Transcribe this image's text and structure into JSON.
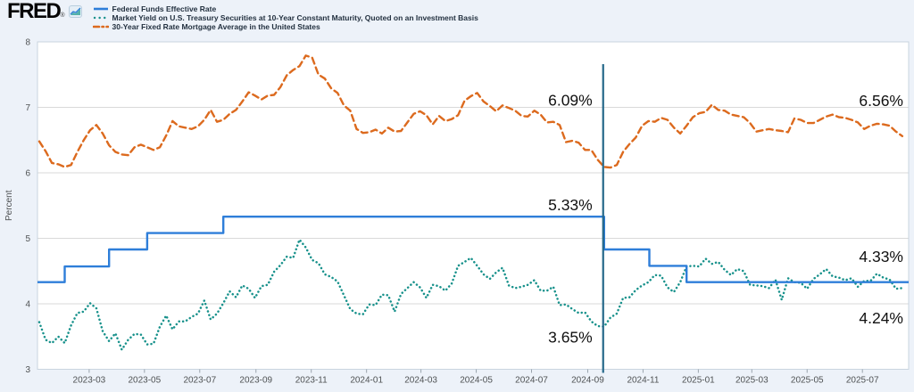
{
  "header": {
    "logo": "FRED",
    "logo_mark": "®",
    "legend": [
      {
        "label": "Federal Funds Effective Rate",
        "color": "#2e7ed9",
        "style": "solid"
      },
      {
        "label": "Market Yield on U.S. Treasury Securities at 10-Year Constant Maturity, Quoted on an Investment Basis",
        "color": "#17918b",
        "style": "dotted"
      },
      {
        "label": "30-Year Fixed Rate Mortgage Average in the United States",
        "color": "#dc6a1e",
        "style": "dashed"
      }
    ]
  },
  "chart_data": {
    "type": "line",
    "title": "",
    "ylabel": "Percent",
    "xlabel": "",
    "grid": "horizontal",
    "legend_position": "top-left",
    "ylim": [
      3,
      8
    ],
    "yticks": [
      3,
      4,
      5,
      6,
      7,
      8
    ],
    "x_domain": [
      "2023-01-03",
      "2025-08-21"
    ],
    "xticks": [
      "2023-03",
      "2023-05",
      "2023-07",
      "2023-09",
      "2023-11",
      "2024-01",
      "2024-03",
      "2024-05",
      "2024-07",
      "2024-09",
      "2024-11",
      "2025-01",
      "2025-03",
      "2025-05",
      "2025-07"
    ],
    "dates": [
      "2023-01-05",
      "2023-01-12",
      "2023-01-19",
      "2023-01-26",
      "2023-02-02",
      "2023-02-09",
      "2023-02-16",
      "2023-02-23",
      "2023-03-02",
      "2023-03-09",
      "2023-03-16",
      "2023-03-23",
      "2023-03-30",
      "2023-04-06",
      "2023-04-13",
      "2023-04-20",
      "2023-04-27",
      "2023-05-04",
      "2023-05-11",
      "2023-05-18",
      "2023-05-25",
      "2023-06-01",
      "2023-06-08",
      "2023-06-15",
      "2023-06-22",
      "2023-06-29",
      "2023-07-06",
      "2023-07-13",
      "2023-07-20",
      "2023-07-27",
      "2023-08-03",
      "2023-08-10",
      "2023-08-17",
      "2023-08-24",
      "2023-08-31",
      "2023-09-07",
      "2023-09-14",
      "2023-09-21",
      "2023-09-28",
      "2023-10-05",
      "2023-10-12",
      "2023-10-19",
      "2023-10-26",
      "2023-11-02",
      "2023-11-09",
      "2023-11-16",
      "2023-11-23",
      "2023-11-30",
      "2023-12-07",
      "2023-12-14",
      "2023-12-21",
      "2023-12-28",
      "2024-01-04",
      "2024-01-11",
      "2024-01-18",
      "2024-01-25",
      "2024-02-01",
      "2024-02-08",
      "2024-02-15",
      "2024-02-22",
      "2024-02-29",
      "2024-03-07",
      "2024-03-14",
      "2024-03-21",
      "2024-03-28",
      "2024-04-04",
      "2024-04-11",
      "2024-04-18",
      "2024-04-25",
      "2024-05-02",
      "2024-05-09",
      "2024-05-16",
      "2024-05-23",
      "2024-05-30",
      "2024-06-06",
      "2024-06-13",
      "2024-06-20",
      "2024-06-27",
      "2024-07-04",
      "2024-07-11",
      "2024-07-18",
      "2024-07-25",
      "2024-08-01",
      "2024-08-08",
      "2024-08-15",
      "2024-08-22",
      "2024-08-29",
      "2024-09-05",
      "2024-09-12",
      "2024-09-19",
      "2024-09-26",
      "2024-10-03",
      "2024-10-10",
      "2024-10-17",
      "2024-10-24",
      "2024-10-31",
      "2024-11-07",
      "2024-11-14",
      "2024-11-21",
      "2024-11-28",
      "2024-12-05",
      "2024-12-12",
      "2024-12-19",
      "2024-12-26",
      "2025-01-02",
      "2025-01-09",
      "2025-01-16",
      "2025-01-23",
      "2025-01-30",
      "2025-02-06",
      "2025-02-13",
      "2025-02-20",
      "2025-02-27",
      "2025-03-06",
      "2025-03-13",
      "2025-03-20",
      "2025-03-27",
      "2025-04-03",
      "2025-04-10",
      "2025-04-17",
      "2025-04-24",
      "2025-05-01",
      "2025-05-08",
      "2025-05-15",
      "2025-05-22",
      "2025-05-29",
      "2025-06-05",
      "2025-06-12",
      "2025-06-19",
      "2025-06-26",
      "2025-07-03",
      "2025-07-10",
      "2025-07-17",
      "2025-07-24",
      "2025-07-31",
      "2025-08-07",
      "2025-08-14"
    ],
    "series": [
      {
        "name": "Federal Funds Effective Rate",
        "color": "#2e7ed9",
        "line_style": "solid",
        "step": true,
        "steps": [
          [
            "2023-01-03",
            4.33
          ],
          [
            "2023-02-02",
            4.57
          ],
          [
            "2023-03-23",
            4.83
          ],
          [
            "2023-05-04",
            5.08
          ],
          [
            "2023-07-27",
            5.33
          ],
          [
            "2024-09-19",
            4.83
          ],
          [
            "2024-11-08",
            4.58
          ],
          [
            "2024-12-19",
            4.33
          ],
          [
            "2025-08-21",
            4.33
          ]
        ]
      },
      {
        "name": "Market Yield on U.S. Treasury Securities at 10-Year Constant Maturity, Quoted on an Investment Basis",
        "color": "#17918b",
        "line_style": "dotted",
        "values": [
          3.72,
          3.45,
          3.4,
          3.5,
          3.4,
          3.67,
          3.86,
          3.88,
          4.01,
          3.93,
          3.58,
          3.43,
          3.55,
          3.3,
          3.45,
          3.54,
          3.53,
          3.38,
          3.39,
          3.65,
          3.82,
          3.61,
          3.73,
          3.73,
          3.8,
          3.85,
          4.05,
          3.76,
          3.85,
          4.01,
          4.19,
          4.1,
          4.28,
          4.23,
          4.09,
          4.27,
          4.29,
          4.49,
          4.59,
          4.72,
          4.7,
          4.98,
          4.86,
          4.67,
          4.62,
          4.45,
          4.41,
          4.34,
          4.13,
          3.92,
          3.85,
          3.84,
          3.99,
          3.98,
          4.14,
          4.13,
          3.88,
          4.15,
          4.24,
          4.33,
          4.25,
          4.09,
          4.29,
          4.27,
          4.2,
          4.31,
          4.58,
          4.64,
          4.7,
          4.58,
          4.45,
          4.38,
          4.48,
          4.55,
          4.28,
          4.24,
          4.26,
          4.29,
          4.36,
          4.2,
          4.2,
          4.26,
          3.98,
          3.99,
          3.92,
          3.86,
          3.87,
          3.73,
          3.66,
          3.65,
          3.79,
          3.85,
          4.09,
          4.1,
          4.21,
          4.28,
          4.33,
          4.44,
          4.43,
          4.25,
          4.18,
          4.33,
          4.57,
          4.58,
          4.57,
          4.69,
          4.61,
          4.64,
          4.52,
          4.44,
          4.53,
          4.5,
          4.29,
          4.28,
          4.27,
          4.24,
          4.37,
          4.06,
          4.39,
          4.33,
          4.32,
          4.23,
          4.38,
          4.45,
          4.53,
          4.42,
          4.4,
          4.36,
          4.39,
          4.26,
          4.35,
          4.35,
          4.46,
          4.4,
          4.37,
          4.23,
          4.24
        ]
      },
      {
        "name": "30-Year Fixed Rate Mortgage Average in the United States",
        "color": "#dc6a1e",
        "line_style": "dashed",
        "values": [
          6.48,
          6.33,
          6.15,
          6.13,
          6.09,
          6.12,
          6.32,
          6.5,
          6.65,
          6.73,
          6.6,
          6.42,
          6.32,
          6.28,
          6.27,
          6.39,
          6.43,
          6.39,
          6.35,
          6.39,
          6.57,
          6.79,
          6.71,
          6.69,
          6.67,
          6.71,
          6.81,
          6.96,
          6.78,
          6.81,
          6.9,
          6.96,
          7.09,
          7.23,
          7.18,
          7.12,
          7.18,
          7.19,
          7.31,
          7.49,
          7.57,
          7.63,
          7.79,
          7.76,
          7.5,
          7.44,
          7.29,
          7.22,
          7.03,
          6.95,
          6.67,
          6.61,
          6.62,
          6.66,
          6.6,
          6.69,
          6.63,
          6.64,
          6.77,
          6.9,
          6.94,
          6.88,
          6.74,
          6.87,
          6.79,
          6.82,
          6.88,
          7.1,
          7.17,
          7.22,
          7.09,
          7.02,
          6.94,
          7.03,
          6.99,
          6.95,
          6.87,
          6.86,
          6.95,
          6.89,
          6.77,
          6.78,
          6.73,
          6.47,
          6.49,
          6.46,
          6.35,
          6.35,
          6.2,
          6.09,
          6.08,
          6.12,
          6.32,
          6.44,
          6.54,
          6.72,
          6.79,
          6.78,
          6.84,
          6.81,
          6.69,
          6.6,
          6.72,
          6.85,
          6.91,
          6.93,
          7.04,
          6.96,
          6.95,
          6.89,
          6.87,
          6.85,
          6.76,
          6.63,
          6.65,
          6.67,
          6.65,
          6.64,
          6.62,
          6.83,
          6.81,
          6.76,
          6.76,
          6.81,
          6.86,
          6.89,
          6.85,
          6.84,
          6.81,
          6.77,
          6.67,
          6.72,
          6.75,
          6.74,
          6.72,
          6.63,
          6.56
        ]
      }
    ],
    "vline": {
      "date": "2024-09-18",
      "color": "#25688a",
      "y_top": 7.66
    },
    "annotations": [
      {
        "label": "6.09%",
        "anchor": "vline",
        "y": 7.03
      },
      {
        "label": "5.33%",
        "anchor": "vline",
        "y": 5.43
      },
      {
        "label": "3.65%",
        "anchor": "vline",
        "y": 3.41
      },
      {
        "label": "6.56%",
        "anchor": "right",
        "y": 7.02
      },
      {
        "label": "4.33%",
        "anchor": "right",
        "y": 4.64
      },
      {
        "label": "4.24%",
        "anchor": "right",
        "y": 3.7
      }
    ],
    "colors": {
      "background": "#edf2f9",
      "plot_background": "#ffffff",
      "gridline": "#d9d9d9",
      "plot_border": "#c9d4df",
      "tick_text": "#4f5254",
      "annotation_text": "#111111"
    }
  }
}
